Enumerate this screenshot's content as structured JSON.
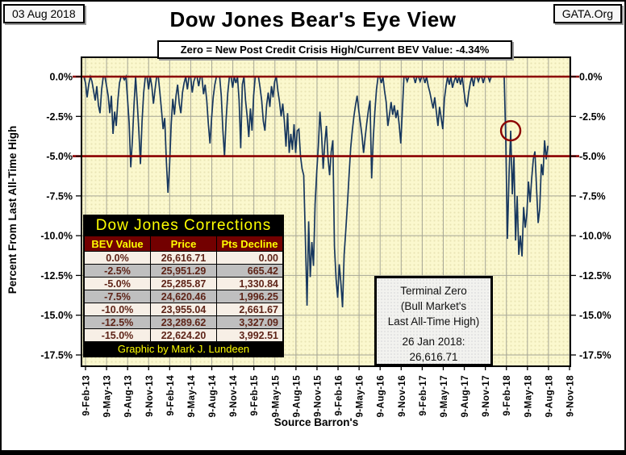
{
  "header": {
    "date_badge": "03 Aug 2018",
    "site_badge": "GATA.Org",
    "title": "Dow Jones Bear's Eye View",
    "subtitle": "Zero = New Post Credit Crisis High/Current BEV Value:  -4.34%"
  },
  "corrections_table": {
    "title": "Dow Jones Corrections",
    "columns": [
      "BEV Value",
      "Price",
      "Pts Decline"
    ],
    "rows": [
      [
        "0.0%",
        "26,616.71",
        "0.00"
      ],
      [
        "-2.5%",
        "25,951.29",
        "665.42"
      ],
      [
        "-5.0%",
        "25,285.87",
        "1,330.84"
      ],
      [
        "-7.5%",
        "24,620.46",
        "1,996.25"
      ],
      [
        "-10.0%",
        "23,955.04",
        "2,661.67"
      ],
      [
        "-12.5%",
        "23,289.62",
        "3,327.09"
      ],
      [
        "-15.0%",
        "22,624.20",
        "3,992.51"
      ]
    ],
    "footer": "Graphic by Mark J. Lundeen"
  },
  "terminal_zero_note": {
    "line1": "Terminal Zero",
    "line2": "(Bull Market's",
    "line3": "Last All-Time High)",
    "date_line": "26 Jan 2018:",
    "value_line": "26,616.71"
  },
  "chart_data": {
    "type": "line",
    "title": "Dow Jones Bear's Eye View",
    "ylabel": "Percent From Last All-Time High",
    "source_note": "Source Barron's",
    "current_bev_pct": -4.34,
    "terminal_zero": {
      "date": "26 Jan 2018",
      "price": 26616.71
    },
    "ylim": [
      -17.5,
      0
    ],
    "grid": true,
    "y_tick_labels": [
      "0.0%",
      "-2.5%",
      "-5.0%",
      "-7.5%",
      "-10.0%",
      "-12.5%",
      "-15.0%",
      "-17.5%"
    ],
    "y_tick_values": [
      0,
      -2.5,
      -5,
      -7.5,
      -10,
      -12.5,
      -15,
      -17.5
    ],
    "x_ticks": [
      "9-Feb-13",
      "9-May-13",
      "9-Aug-13",
      "9-Nov-13",
      "9-Feb-14",
      "9-May-14",
      "9-Aug-14",
      "9-Nov-14",
      "9-Feb-15",
      "9-May-15",
      "9-Aug-15",
      "9-Nov-15",
      "9-Feb-16",
      "9-May-16",
      "9-Aug-16",
      "9-Nov-16",
      "9-Feb-17",
      "9-May-17",
      "9-Aug-17",
      "9-Nov-17",
      "9-Feb-18",
      "9-May-18",
      "9-Aug-18",
      "9-Nov-18"
    ],
    "red_line_values": [
      0,
      -5
    ],
    "annotation_circle": {
      "week": 264,
      "value": -3.4
    },
    "series": [
      {
        "name": "Dow Jones BEV (% below last all-time high)",
        "x_unit": "weeks since 9-Feb-2013",
        "x_span_weeks": 300,
        "weekly_values": [
          0,
          -0.4,
          -1.3,
          -0.5,
          0,
          -0.3,
          -0.9,
          -1.5,
          -0.6,
          -1.8,
          -2.3,
          -0.8,
          0,
          0,
          -0.6,
          -1.2,
          -2.3,
          -1.2,
          -3.6,
          -2.2,
          -3.1,
          -1.5,
          -0.4,
          0,
          0,
          -0.2,
          0,
          -1.4,
          -2.9,
          -5.7,
          -4.0,
          -1.8,
          0,
          -1.6,
          -3.4,
          -5.5,
          -2.8,
          -1.0,
          0,
          0,
          -0.8,
          0,
          -0.6,
          -1.7,
          -0.8,
          0,
          0,
          -1.0,
          -2.1,
          -3.3,
          -2.6,
          -5.3,
          -7.3,
          -5.6,
          -3.0,
          -1.4,
          -2.4,
          -1.2,
          -0.5,
          -1.7,
          -2.3,
          -1.0,
          -0.4,
          0,
          -0.8,
          0,
          0,
          -1.0,
          -0.3,
          0,
          0,
          -0.6,
          0,
          0,
          -1.1,
          -0.5,
          -1.5,
          -3.0,
          -4.2,
          -2.6,
          -1.3,
          -0.5,
          0,
          0,
          0,
          -1.2,
          -3.4,
          -5.0,
          -2.6,
          -1.0,
          0,
          0,
          -0.7,
          0,
          -0.4,
          0,
          -1.5,
          -4.5,
          -0.5,
          0,
          -1.5,
          -2.5,
          -3.8,
          -2.0,
          -3.4,
          -1.2,
          0,
          0,
          0,
          -0.7,
          -1.5,
          -2.8,
          -3.4,
          -1.8,
          -1.0,
          -1.9,
          -0.6,
          -1.3,
          -0.3,
          0,
          -0.9,
          -1.6,
          -2.5,
          -1.7,
          -2.8,
          -4.4,
          -2.3,
          -4.8,
          -3.6,
          -4.6,
          -3.0,
          -4.8,
          -3.4,
          -3.3,
          -5.0,
          -5.8,
          -6.2,
          -10.1,
          -14.4,
          -9.1,
          -12.6,
          -10.4,
          -11.9,
          -8.0,
          -6.0,
          -4.4,
          -2.2,
          -3.6,
          -5.8,
          -4.2,
          -3.1,
          -5.1,
          -6.2,
          -4.7,
          -4.0,
          -10.7,
          -12.7,
          -13.9,
          -11.8,
          -13.0,
          -14.5,
          -11.2,
          -9.7,
          -8.0,
          -6.2,
          -4.5,
          -3.4,
          -2.5,
          -1.8,
          -1.2,
          -2.1,
          -2.9,
          -3.7,
          -4.8,
          -3.8,
          -2.9,
          -2.1,
          -1.5,
          -6.4,
          -3.9,
          -2.2,
          -0.8,
          0,
          0,
          -0.4,
          0,
          -0.9,
          -1.6,
          -3.1,
          -2.4,
          -1.6,
          -2.4,
          -1.8,
          -2.6,
          -2.1,
          -3.0,
          -4.2,
          -2.1,
          0,
          0,
          -0.3,
          0,
          0,
          0,
          0,
          -0.4,
          0,
          0,
          -0.3,
          0,
          0,
          -0.4,
          0,
          -0.6,
          -1.0,
          -1.5,
          -2.0,
          -1.3,
          -2.2,
          -3.1,
          -1.9,
          -2.6,
          -3.3,
          -1.4,
          -0.6,
          0,
          -0.5,
          0,
          -0.7,
          -0.3,
          0,
          -0.4,
          0,
          -0.5,
          0,
          -0.8,
          -1.6,
          -1.9,
          -1.0,
          -0.4,
          0,
          -0.6,
          0,
          0,
          -0.3,
          0,
          0,
          -0.4,
          0,
          0,
          0,
          -0.3,
          0,
          0,
          0,
          0,
          0,
          0,
          0,
          0,
          0,
          -4.1,
          -10.2,
          -6.0,
          -3.4,
          -7.4,
          -5.0,
          -10.3,
          -7.5,
          -11.2,
          -10.0,
          -11.3,
          -8.2,
          -9.5,
          -8.6,
          -6.6,
          -7.9,
          -6.4,
          -5.2,
          -4.7,
          -7.0,
          -9.2,
          -8.3,
          -5.5,
          -6.2,
          -4.0,
          -5.2,
          -4.34
        ]
      }
    ],
    "colors": {
      "line": "#17375E",
      "red_line": "#8B0000",
      "plot_bg": "#FBF8CE",
      "grid": "#A6A696",
      "annotation_circle": "#8B0000",
      "axis_text": "#000000"
    }
  }
}
